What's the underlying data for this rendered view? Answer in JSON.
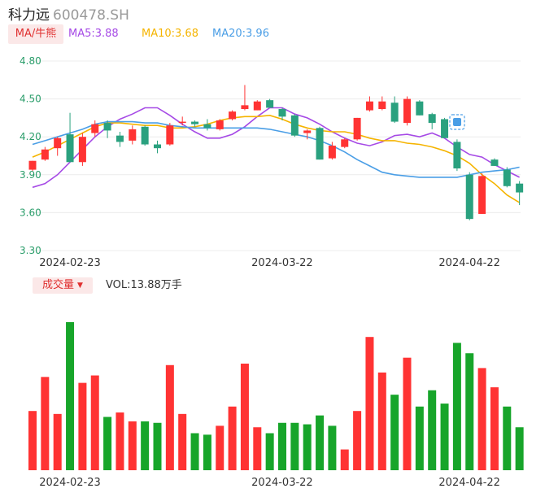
{
  "header": {
    "name": "科力远",
    "code": "600478.SH"
  },
  "ma_legend": {
    "tag": "MA/牛熊",
    "items": [
      {
        "label": "MA5:3.88",
        "color": "#a64ae6"
      },
      {
        "label": "MA10:3.68",
        "color": "#f5b400"
      },
      {
        "label": "MA20:3.96",
        "color": "#4a9ee6"
      }
    ]
  },
  "volume_legend": {
    "tag": "成交量",
    "value": "VOL:13.88万手"
  },
  "colors": {
    "up": "#ff3333",
    "down": "#17a52a",
    "candle_down": "#2aa17f",
    "grid": "#ececec",
    "axis_text": "#2a9d6a"
  },
  "chart_data": [
    {
      "type": "candlestick",
      "y_ticks": [
        "4.80",
        "4.50",
        "4.20",
        "3.90",
        "3.60",
        "3.30"
      ],
      "ylim": [
        3.3,
        4.8
      ],
      "x_tick_labels": [
        {
          "label": "2024-02-23",
          "index": 0
        },
        {
          "label": "2024-03-22",
          "index": 17
        },
        {
          "label": "2024-04-22",
          "index": 32
        }
      ],
      "candles": [
        {
          "o": 3.94,
          "h": 4.01,
          "l": 3.93,
          "c": 4.01
        },
        {
          "o": 4.02,
          "h": 4.12,
          "l": 4.01,
          "c": 4.1
        },
        {
          "o": 4.11,
          "h": 4.2,
          "l": 4.05,
          "c": 4.19
        },
        {
          "o": 4.22,
          "h": 4.39,
          "l": 4.0,
          "c": 4.0
        },
        {
          "o": 4.0,
          "h": 4.23,
          "l": 3.97,
          "c": 4.2
        },
        {
          "o": 4.23,
          "h": 4.33,
          "l": 4.2,
          "c": 4.3
        },
        {
          "o": 4.31,
          "h": 4.33,
          "l": 4.19,
          "c": 4.25
        },
        {
          "o": 4.21,
          "h": 4.24,
          "l": 4.12,
          "c": 4.16
        },
        {
          "o": 4.17,
          "h": 4.29,
          "l": 4.14,
          "c": 4.26
        },
        {
          "o": 4.28,
          "h": 4.29,
          "l": 4.13,
          "c": 4.14
        },
        {
          "o": 4.14,
          "h": 4.17,
          "l": 4.07,
          "c": 4.11
        },
        {
          "o": 4.14,
          "h": 4.31,
          "l": 4.13,
          "c": 4.29
        },
        {
          "o": 4.31,
          "h": 4.36,
          "l": 4.29,
          "c": 4.32
        },
        {
          "o": 4.32,
          "h": 4.33,
          "l": 4.28,
          "c": 4.3
        },
        {
          "o": 4.3,
          "h": 4.34,
          "l": 4.25,
          "c": 4.27
        },
        {
          "o": 4.26,
          "h": 4.34,
          "l": 4.25,
          "c": 4.33
        },
        {
          "o": 4.34,
          "h": 4.41,
          "l": 4.33,
          "c": 4.4
        },
        {
          "o": 4.42,
          "h": 4.61,
          "l": 4.41,
          "c": 4.45
        },
        {
          "o": 4.41,
          "h": 4.49,
          "l": 4.41,
          "c": 4.48
        },
        {
          "o": 4.49,
          "h": 4.5,
          "l": 4.43,
          "c": 4.43
        },
        {
          "o": 4.42,
          "h": 4.43,
          "l": 4.33,
          "c": 4.36
        },
        {
          "o": 4.37,
          "h": 4.38,
          "l": 4.2,
          "c": 4.21
        },
        {
          "o": 4.23,
          "h": 4.26,
          "l": 4.18,
          "c": 4.25
        },
        {
          "o": 4.27,
          "h": 4.28,
          "l": 4.02,
          "c": 4.02
        },
        {
          "o": 4.03,
          "h": 4.16,
          "l": 4.02,
          "c": 4.13
        },
        {
          "o": 4.12,
          "h": 4.19,
          "l": 4.11,
          "c": 4.18
        },
        {
          "o": 4.18,
          "h": 4.35,
          "l": 4.17,
          "c": 4.35
        },
        {
          "o": 4.41,
          "h": 4.52,
          "l": 4.4,
          "c": 4.48
        },
        {
          "o": 4.42,
          "h": 4.52,
          "l": 4.41,
          "c": 4.48
        },
        {
          "o": 4.47,
          "h": 4.52,
          "l": 4.31,
          "c": 4.32
        },
        {
          "o": 4.31,
          "h": 4.52,
          "l": 4.29,
          "c": 4.5
        },
        {
          "o": 4.48,
          "h": 4.49,
          "l": 4.37,
          "c": 4.37
        },
        {
          "o": 4.38,
          "h": 4.39,
          "l": 4.26,
          "c": 4.31
        },
        {
          "o": 4.34,
          "h": 4.35,
          "l": 4.19,
          "c": 4.19
        },
        {
          "o": 4.16,
          "h": 4.18,
          "l": 3.93,
          "c": 3.95
        },
        {
          "o": 3.9,
          "h": 3.92,
          "l": 3.54,
          "c": 3.55
        },
        {
          "o": 3.59,
          "h": 3.91,
          "l": 3.59,
          "c": 3.89
        },
        {
          "o": 4.02,
          "h": 4.03,
          "l": 3.97,
          "c": 3.97
        },
        {
          "o": 3.94,
          "h": 3.96,
          "l": 3.8,
          "c": 3.81
        },
        {
          "o": 3.83,
          "h": 3.85,
          "l": 3.66,
          "c": 3.76
        }
      ],
      "series": [
        {
          "name": "MA5",
          "color": "#a64ae6",
          "values": [
            3.8,
            3.83,
            3.9,
            4.0,
            4.1,
            4.2,
            4.28,
            4.34,
            4.38,
            4.43,
            4.43,
            4.37,
            4.3,
            4.24,
            4.19,
            4.19,
            4.22,
            4.28,
            4.36,
            4.43,
            4.43,
            4.38,
            4.35,
            4.3,
            4.24,
            4.19,
            4.15,
            4.13,
            4.16,
            4.21,
            4.22,
            4.2,
            4.23,
            4.19,
            4.12,
            4.06,
            4.04,
            3.98,
            3.93,
            3.88
          ]
        },
        {
          "name": "MA10",
          "color": "#f5b400",
          "values": [
            4.04,
            4.08,
            4.13,
            4.18,
            4.23,
            4.28,
            4.31,
            4.31,
            4.3,
            4.29,
            4.29,
            4.27,
            4.27,
            4.28,
            4.3,
            4.33,
            4.35,
            4.36,
            4.36,
            4.37,
            4.34,
            4.3,
            4.27,
            4.25,
            4.24,
            4.24,
            4.22,
            4.19,
            4.17,
            4.17,
            4.15,
            4.14,
            4.12,
            4.09,
            4.05,
            3.99,
            3.9,
            3.83,
            3.74,
            3.68
          ]
        },
        {
          "name": "MA20",
          "color": "#4a9ee6",
          "values": [
            4.14,
            4.17,
            4.2,
            4.23,
            4.26,
            4.3,
            4.32,
            4.32,
            4.32,
            4.31,
            4.31,
            4.29,
            4.28,
            4.27,
            4.27,
            4.27,
            4.27,
            4.27,
            4.27,
            4.26,
            4.24,
            4.22,
            4.2,
            4.17,
            4.13,
            4.08,
            4.02,
            3.97,
            3.92,
            3.9,
            3.89,
            3.88,
            3.88,
            3.88,
            3.88,
            3.9,
            3.92,
            3.93,
            3.94,
            3.96
          ]
        }
      ]
    },
    {
      "type": "bar",
      "name": "volume",
      "ylim": [
        0,
        100
      ],
      "values": [
        40,
        63,
        38,
        100,
        59,
        64,
        36,
        39,
        33,
        33,
        32,
        71,
        38,
        25,
        24,
        30,
        43,
        72,
        29,
        25,
        32,
        32,
        31,
        37,
        30,
        14,
        40,
        90,
        66,
        51,
        76,
        43,
        54,
        45,
        86,
        79,
        69,
        56,
        43,
        29
      ],
      "up_flags": [
        1,
        1,
        1,
        0,
        1,
        1,
        0,
        1,
        1,
        0,
        0,
        1,
        1,
        0,
        0,
        1,
        1,
        1,
        1,
        0,
        0,
        0,
        0,
        0,
        0,
        1,
        1,
        1,
        1,
        0,
        1,
        0,
        0,
        0,
        0,
        0,
        1,
        1,
        0,
        0
      ]
    }
  ]
}
